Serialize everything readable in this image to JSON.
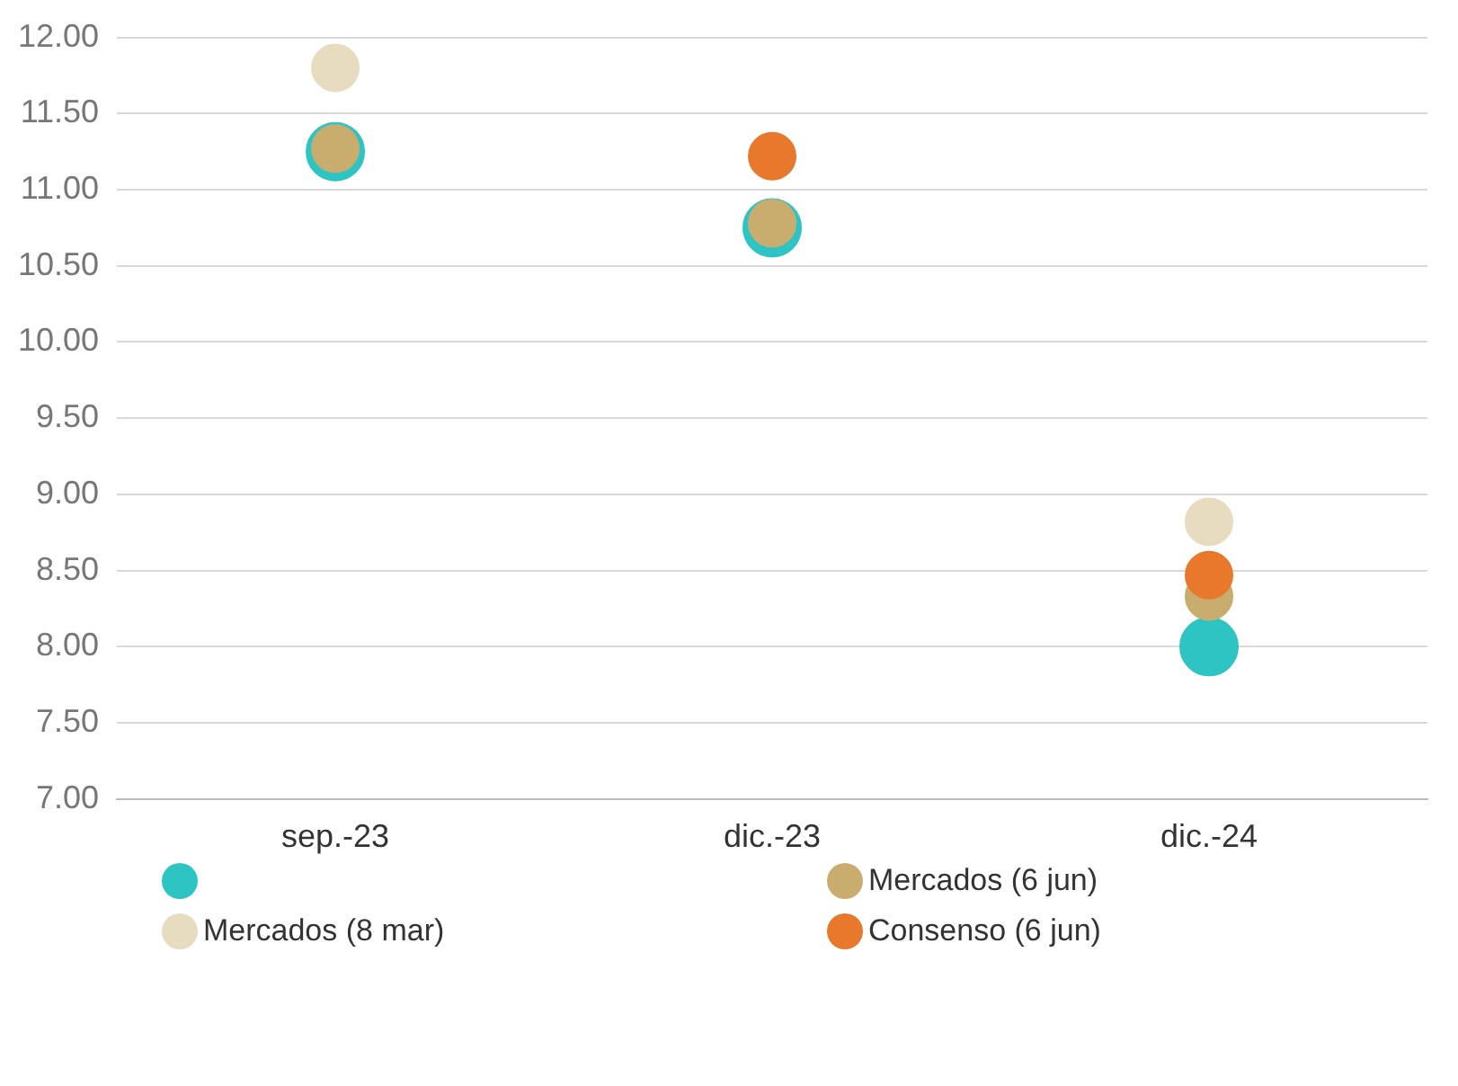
{
  "chart_data": {
    "type": "scatter",
    "categories": [
      "sep.-23",
      "dic.-23",
      "dic.-24"
    ],
    "series": [
      {
        "color": "#2ec4c4",
        "values": [
          11.25,
          10.75,
          8.0
        ]
      },
      {
        "name": "Mercados (8 mar)",
        "color": "#e8dcc0",
        "values": [
          11.8,
          null,
          8.82
        ]
      },
      {
        "name": "Mercados (6 jun)",
        "color": "#c9ad6e",
        "values": [
          11.27,
          10.78,
          8.33
        ]
      },
      {
        "name": "Consenso (6 jun)",
        "color": "#e8782c",
        "values": [
          null,
          11.22,
          8.47
        ]
      }
    ],
    "ylim": [
      7,
      12
    ],
    "yticks": [
      {
        "value": 7,
        "label": "7.00"
      },
      {
        "value": 7.5,
        "label": "7.50"
      },
      {
        "value": 8,
        "label": "8.00"
      },
      {
        "value": 8.5,
        "label": "8.50"
      },
      {
        "value": 9,
        "label": "9.00"
      },
      {
        "value": 9.5,
        "label": "9.50"
      },
      {
        "value": 10,
        "label": "10.00"
      },
      {
        "value": 10.5,
        "label": "10.50"
      },
      {
        "value": 11,
        "label": "11.00"
      },
      {
        "value": 11.5,
        "label": "11.50"
      },
      {
        "value": 12,
        "label": "12.00"
      }
    ],
    "grid": "y",
    "legend": "bottom",
    "marker": "circle"
  }
}
